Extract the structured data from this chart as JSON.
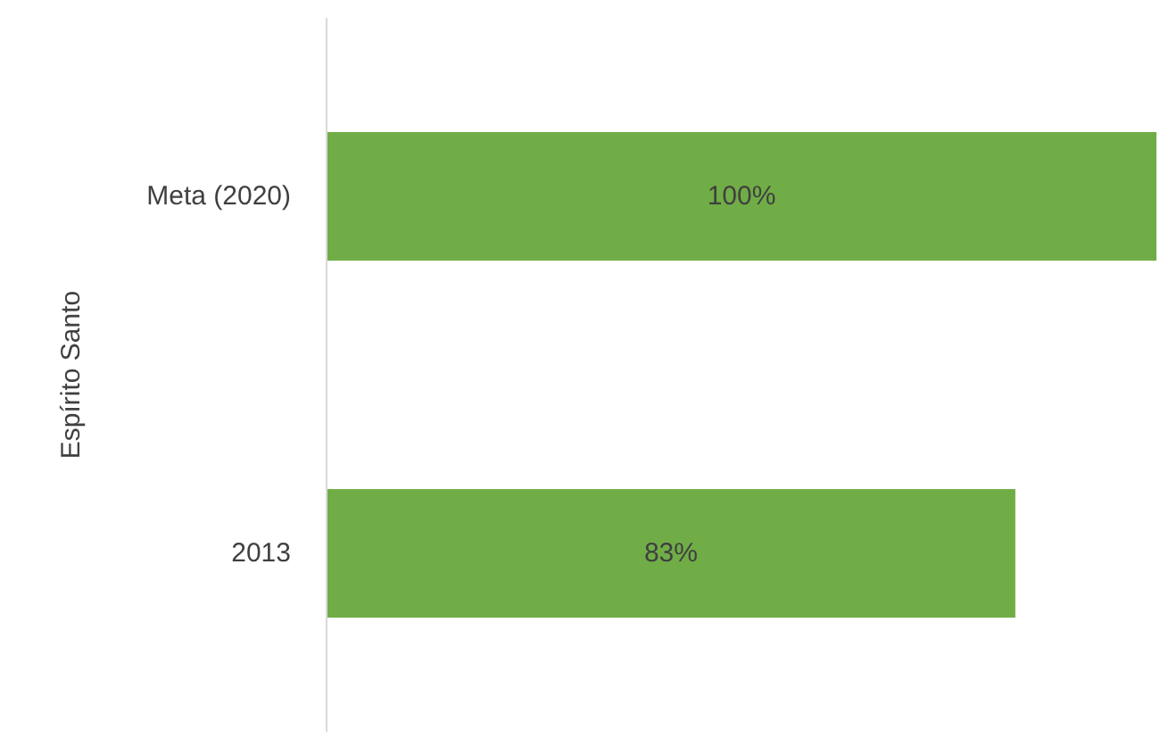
{
  "chart_data": {
    "type": "bar",
    "orientation": "horizontal",
    "ylabel": "Espírito Santo",
    "categories": [
      "Meta (2020)",
      "2013"
    ],
    "values": [
      100,
      83
    ],
    "color": "#70ad47",
    "value_labels": [
      "100%",
      "83%"
    ],
    "xlim": [
      0,
      100
    ]
  }
}
